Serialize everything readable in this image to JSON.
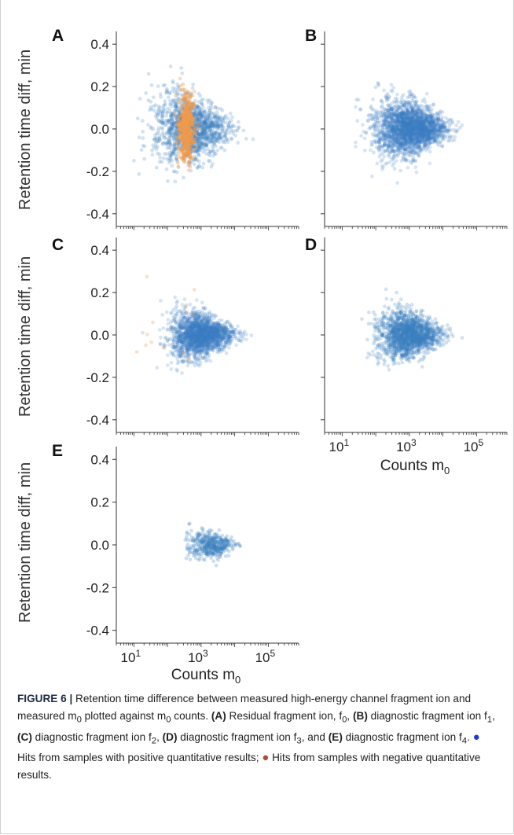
{
  "colors": {
    "positive": "#3a7fc1",
    "negative": "#f39a4b",
    "axis": "#333333",
    "legend_positive_dot": "#1f3fd0",
    "legend_negative_dot": "#a9503a"
  },
  "y_axis_label": "Retention time diff, min",
  "x_axis_label": "Counts m",
  "x_axis_label_sub": "0",
  "chart_data": [
    {
      "type": "scatter",
      "panel": "A",
      "x_scale": "log",
      "xlim": [
        3,
        800000
      ],
      "ylim": [
        -0.46,
        0.46
      ],
      "y_ticks": [
        "0.4",
        "0.2",
        "0.0",
        "-0.2",
        "-0.4"
      ],
      "x_ticks": [],
      "series": [
        {
          "color_key": "positive",
          "n": 1400,
          "log_mu": 2.7,
          "log_sigma": 0.55,
          "log_range": [
            1.0,
            5.1
          ],
          "spread_base": 0.018,
          "spread_slope": 0.03,
          "spread_anchor": 4.6,
          "offset": 0.0,
          "opacity": 0.22
        },
        {
          "color_key": "negative",
          "n": 520,
          "log_mu": 2.55,
          "log_sigma": 0.12,
          "log_range": [
            2.2,
            2.95
          ],
          "spread_base": 0.08,
          "spread_slope": 0.0,
          "spread_anchor": 4.6,
          "offset": 0.01,
          "opacity": 0.35
        }
      ]
    },
    {
      "type": "scatter",
      "panel": "B",
      "x_scale": "log",
      "xlim": [
        3,
        800000
      ],
      "ylim": [
        -0.46,
        0.46
      ],
      "y_ticks": [],
      "x_ticks": [],
      "series": [
        {
          "color_key": "positive",
          "n": 2400,
          "log_mu": 3.0,
          "log_sigma": 0.5,
          "log_range": [
            1.4,
            5.4
          ],
          "spread_base": 0.01,
          "spread_slope": 0.026,
          "spread_anchor": 5.0,
          "offset": 0.0,
          "opacity": 0.2
        }
      ]
    },
    {
      "type": "scatter",
      "panel": "C",
      "x_scale": "log",
      "xlim": [
        3,
        800000
      ],
      "ylim": [
        -0.46,
        0.46
      ],
      "y_ticks": [
        "0.4",
        "0.2",
        "0.0",
        "-0.2",
        "-0.4"
      ],
      "x_ticks": [],
      "series": [
        {
          "color_key": "positive",
          "n": 2000,
          "log_mu": 3.0,
          "log_sigma": 0.45,
          "log_range": [
            1.0,
            5.0
          ],
          "spread_base": 0.01,
          "spread_slope": 0.024,
          "spread_anchor": 4.6,
          "offset": 0.0,
          "opacity": 0.2
        },
        {
          "color_key": "negative",
          "n": 14,
          "log_mu": 1.8,
          "log_sigma": 0.6,
          "log_range": [
            0.8,
            2.8
          ],
          "spread_base": 0.12,
          "spread_slope": 0.0,
          "spread_anchor": 4.6,
          "offset": 0.0,
          "opacity": 0.3
        }
      ]
    },
    {
      "type": "scatter",
      "panel": "D",
      "x_scale": "log",
      "xlim": [
        3,
        800000
      ],
      "ylim": [
        -0.46,
        0.46
      ],
      "y_ticks": [],
      "x_ticks": [
        "10",
        "10",
        "10"
      ],
      "x_tick_exponents": [
        "1",
        "3",
        "5"
      ],
      "x_tick_values": [
        10,
        1000,
        100000
      ],
      "series": [
        {
          "color_key": "positive",
          "n": 1700,
          "log_mu": 3.0,
          "log_sigma": 0.45,
          "log_range": [
            1.4,
            5.2
          ],
          "spread_base": 0.01,
          "spread_slope": 0.022,
          "spread_anchor": 4.8,
          "offset": 0.0,
          "opacity": 0.22
        }
      ]
    },
    {
      "type": "scatter",
      "panel": "E",
      "x_scale": "log",
      "xlim": [
        3,
        800000
      ],
      "ylim": [
        -0.46,
        0.46
      ],
      "y_ticks": [
        "0.4",
        "0.2",
        "0.0",
        "-0.2",
        "-0.4"
      ],
      "x_ticks": [
        "10",
        "10",
        "10"
      ],
      "x_tick_exponents": [
        "1",
        "3",
        "5"
      ],
      "x_tick_values": [
        10,
        1000,
        100000
      ],
      "series": [
        {
          "color_key": "positive",
          "n": 420,
          "log_mu": 3.3,
          "log_sigma": 0.35,
          "log_range": [
            2.4,
            4.5
          ],
          "spread_base": 0.01,
          "spread_slope": 0.02,
          "spread_anchor": 4.4,
          "offset": 0.0,
          "opacity": 0.25
        }
      ]
    }
  ],
  "caption": {
    "figure_label": "FIGURE 6 |",
    "t1": " Retention time difference between measured high-energy channel fragment ion and measured m",
    "t1_sub": "0",
    "t2": " plotted against m",
    "t2_sub": "0",
    "t3": " counts. ",
    "a_label": "(A)",
    "t4": " Residual fragment ion, f",
    "f0": "0",
    "t5": ", ",
    "b_label": "(B)",
    "t6": " diagnostic fragment ion f",
    "f1": "1",
    "t7": ", ",
    "c_label": "(C)",
    "t8": " diagnostic fragment ion f",
    "f2": "2",
    "t9": ", ",
    "d_label": "(D)",
    "t10": " diagnostic fragment ion f",
    "f3": "3",
    "t11": ", and ",
    "e_label": "(E)",
    "t12": " diagnostic fragment ion f",
    "f4": "4",
    "t13": ". ",
    "dot1": "●",
    "t14": " Hits from samples with positive quantitative results; ",
    "dot2": "●",
    "t15": " Hits from samples with negative quantitative results."
  }
}
